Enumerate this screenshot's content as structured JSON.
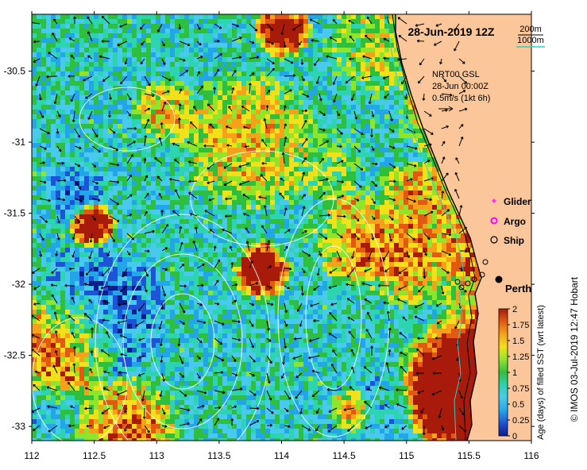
{
  "map": {
    "title": "28-Jun-2019 12Z",
    "depth_legend": [
      "200m",
      "1000m"
    ],
    "currents_label": [
      "NRT00 GSL",
      "28-Jun 00:00Z",
      "0.5m/s (1kt 6h)"
    ],
    "markers": [
      {
        "label": "Glider",
        "symbol": "diamond",
        "color": "#ff33ff"
      },
      {
        "label": "Argo",
        "symbol": "ring",
        "color": "#ff00ff"
      },
      {
        "label": "Ship",
        "symbol": "circle",
        "color": "#000000"
      }
    ],
    "place_label": "Perth",
    "credit": "© IMOS 03-Jul-2019 12:47 Hobart",
    "x_ticks": [
      "112",
      "112.5",
      "113",
      "113.5",
      "114",
      "114.5",
      "115",
      "115.5",
      "116"
    ],
    "y_ticks": [
      "-30.5",
      "-31",
      "-31.5",
      "-32",
      "-32.5",
      "-33"
    ],
    "colorbar": {
      "label": "Age (days) of filled SST (wrt latest)",
      "ticks": [
        "2",
        "1.75",
        "1.5",
        "1.25",
        "1",
        "0.75",
        "0.5",
        "0.25",
        "0"
      ],
      "range": [
        0,
        2
      ]
    },
    "colors": {
      "land": "#fbc79a",
      "shelf_line": "#33cccc",
      "palette": [
        "#0a1e8c",
        "#1d53d6",
        "#23a6e8",
        "#48c9ee",
        "#2cd4b0",
        "#2fbf3f",
        "#8ee52a",
        "#f2e01a",
        "#f5a21a",
        "#e25a12",
        "#a81a0a"
      ]
    },
    "lon_range": [
      112,
      116
    ],
    "lat_range": [
      -33.1,
      -30.1
    ]
  }
}
